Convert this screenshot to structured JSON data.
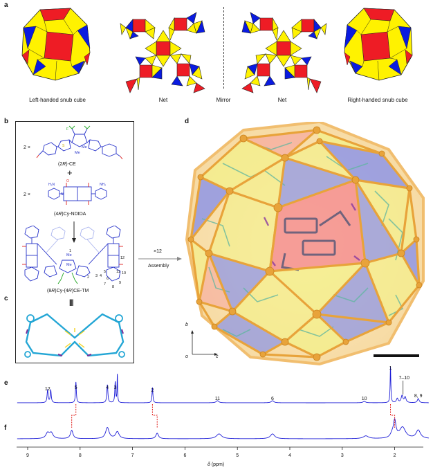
{
  "panels": {
    "a": "a",
    "b": "b",
    "c": "c",
    "d": "d",
    "e": "e",
    "f": "f"
  },
  "panel_a": {
    "left_caption": "Left-handed snub cube",
    "net_left_caption": "Net",
    "mirror_caption": "Mirror",
    "net_right_caption": "Net",
    "right_caption": "Right-handed snub cube"
  },
  "panel_b": {
    "count_ce": "2 ×",
    "ce_label_pre": "(2",
    "ce_label_r": "R",
    "ce_label_post": ")-CE",
    "plus": "+",
    "count_ndida": "2 ×",
    "ndida_label_pre": "(4",
    "ndida_label_r": "R",
    "ndida_label_post": ")Cy-NDIDA",
    "tm_label_pre": "(8",
    "tm_label_r1": "R",
    "tm_label_mid": ")Cy-(4",
    "tm_label_r2": "R",
    "tm_label_post": ")CE-TM",
    "equiv": "|||",
    "atom_labels": {
      "me1": "Me",
      "me2": "Me",
      "f": "F",
      "nh2": "NH₂",
      "h2n": "H₂N",
      "o": "O",
      "n": "N",
      "s": "S"
    },
    "position_numbers": [
      "1",
      "2",
      "3",
      "4",
      "5",
      "6",
      "7",
      "8",
      "9",
      "10",
      "11",
      "12"
    ]
  },
  "arrow": {
    "multiplier": "×12",
    "label": "Assembly"
  },
  "panel_d": {
    "axis_b": "b",
    "axis_o": "o",
    "axis_c": "c"
  },
  "nmr": {
    "x_label_delta": "δ",
    "x_label_unit": "(ppm)",
    "ticks": [
      "9",
      "8",
      "7",
      "6",
      "5",
      "4",
      "3",
      "2"
    ],
    "peak_labels_e": [
      {
        "text": "12",
        "ppm": 8.62
      },
      {
        "text": "5",
        "ppm": 8.08
      },
      {
        "text": "4",
        "ppm": 7.48
      },
      {
        "text": "3",
        "ppm": 7.33
      },
      {
        "text": "2",
        "ppm": 6.62
      },
      {
        "text": "11",
        "ppm": 5.38
      },
      {
        "text": "6",
        "ppm": 4.33
      },
      {
        "text": "10",
        "ppm": 2.58
      },
      {
        "text": "1",
        "ppm": 2.08
      },
      {
        "text": "7–10",
        "ppm": 1.82
      },
      {
        "text": "8, 9",
        "ppm": 1.55
      }
    ]
  },
  "colors": {
    "yellow": "#FFF200",
    "red": "#EE1C25",
    "blue": "#0A1BE0",
    "spectrum": "#1a1ad6",
    "shift": "#e0201c",
    "gold": "#E8A33A",
    "chem": "#2531c9"
  }
}
